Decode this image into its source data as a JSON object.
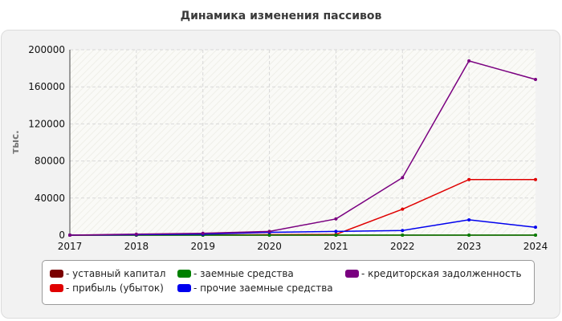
{
  "chart_data": {
    "type": "line",
    "title": "Динамика изменения пассивов",
    "ylabel": "тыс.",
    "xlabel": "",
    "x": [
      "2017",
      "2018",
      "2019",
      "2020",
      "2021",
      "2022",
      "2023",
      "2024"
    ],
    "ylim": [
      0,
      200000
    ],
    "yticks": [
      "0",
      "40000",
      "80000",
      "120000",
      "160000",
      "200000"
    ],
    "ytick_values": [
      0,
      40000,
      80000,
      120000,
      160000,
      200000
    ],
    "grid": true,
    "legend_position": "bottom",
    "series": [
      {
        "name": "- уставный капитал",
        "color": "#7a0000",
        "values": [
          10,
          10,
          10,
          10,
          10,
          10,
          10,
          10
        ]
      },
      {
        "name": "- прибыль (убыток)",
        "color": "#e00000",
        "values": [
          0,
          200,
          300,
          500,
          800,
          28000,
          60000,
          60000
        ]
      },
      {
        "name": "- заемные средства",
        "color": "#008000",
        "values": [
          0,
          0,
          0,
          0,
          0,
          0,
          0,
          0
        ]
      },
      {
        "name": "- прочие заемные средства",
        "color": "#0000ee",
        "values": [
          0,
          500,
          1000,
          3000,
          4000,
          5000,
          16500,
          8500
        ]
      },
      {
        "name": "- кредиторская задолженность",
        "color": "#7a0080",
        "values": [
          0,
          1000,
          2000,
          4000,
          17500,
          62000,
          188000,
          168000
        ]
      }
    ]
  }
}
